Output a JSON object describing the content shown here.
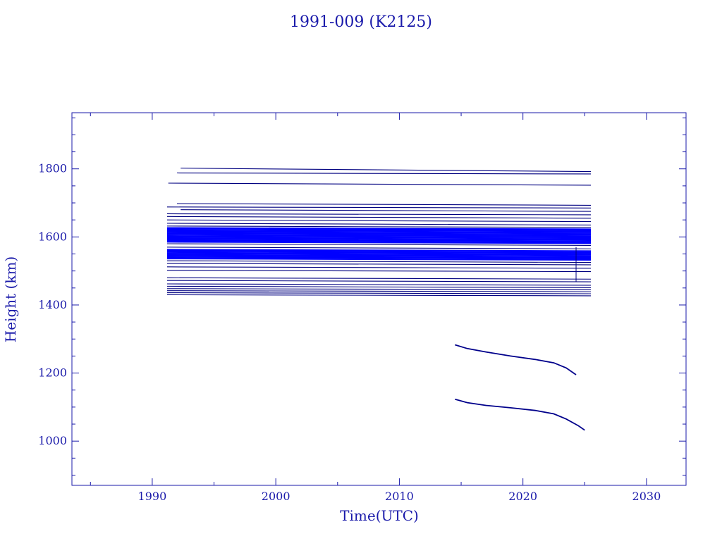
{
  "chart_data": {
    "type": "line",
    "title": "1991-009 (K2125)",
    "xlabel": "Time(UTC)",
    "ylabel": "Height (km)",
    "xlim": [
      1983.5,
      2033.2
    ],
    "ylim": [
      870,
      1965
    ],
    "x_ticks": [
      1990,
      2000,
      2010,
      2020,
      2030
    ],
    "y_ticks": [
      1000,
      1200,
      1400,
      1600,
      1800
    ],
    "grid": false,
    "colors": {
      "frame": "#1a1aaa",
      "text": "#1a1aaa",
      "dense_lines": "#0000ff",
      "thin_lines": "#000080",
      "decay_lines": "#00008b"
    },
    "debris_tracks": {
      "thin_series": [
        {
          "start": 1992.3,
          "end": 2025.5,
          "y0": 1802,
          "y1": 1792
        },
        {
          "start": 1992.0,
          "end": 2025.5,
          "y0": 1788,
          "y1": 1785
        },
        {
          "start": 1991.3,
          "end": 2025.5,
          "y0": 1758,
          "y1": 1752
        },
        {
          "start": 1992.0,
          "end": 2025.5,
          "y0": 1698,
          "y1": 1693
        },
        {
          "start": 1991.2,
          "end": 2025.5,
          "y0": 1688,
          "y1": 1685
        },
        {
          "start": 1992.3,
          "end": 2025.5,
          "y0": 1680,
          "y1": 1675
        },
        {
          "start": 1991.2,
          "end": 2025.5,
          "y0": 1668,
          "y1": 1665
        },
        {
          "start": 1991.2,
          "end": 2025.5,
          "y0": 1660,
          "y1": 1655
        },
        {
          "start": 1991.2,
          "end": 2025.5,
          "y0": 1650,
          "y1": 1645
        },
        {
          "start": 1991.2,
          "end": 2025.5,
          "y0": 1640,
          "y1": 1635
        },
        {
          "start": 1991.2,
          "end": 2025.5,
          "y0": 1632,
          "y1": 1628
        },
        {
          "start": 1991.2,
          "end": 2025.5,
          "y0": 1580,
          "y1": 1575
        },
        {
          "start": 1991.2,
          "end": 2025.5,
          "y0": 1570,
          "y1": 1565
        },
        {
          "start": 1991.2,
          "end": 2025.5,
          "y0": 1530,
          "y1": 1525
        },
        {
          "start": 1991.2,
          "end": 2025.5,
          "y0": 1522,
          "y1": 1518
        },
        {
          "start": 1991.2,
          "end": 2025.5,
          "y0": 1512,
          "y1": 1508
        },
        {
          "start": 1991.2,
          "end": 2025.5,
          "y0": 1502,
          "y1": 1498
        },
        {
          "start": 1991.2,
          "end": 2025.5,
          "y0": 1480,
          "y1": 1476
        },
        {
          "start": 1991.2,
          "end": 2025.5,
          "y0": 1472,
          "y1": 1468
        },
        {
          "start": 1991.2,
          "end": 2025.5,
          "y0": 1462,
          "y1": 1458
        },
        {
          "start": 1991.2,
          "end": 2025.5,
          "y0": 1455,
          "y1": 1451
        },
        {
          "start": 1991.2,
          "end": 2025.5,
          "y0": 1448,
          "y1": 1445
        },
        {
          "start": 1991.2,
          "end": 2025.5,
          "y0": 1442,
          "y1": 1439
        },
        {
          "start": 1991.2,
          "end": 2025.5,
          "y0": 1436,
          "y1": 1433
        },
        {
          "start": 1991.2,
          "end": 2025.5,
          "y0": 1430,
          "y1": 1427
        }
      ],
      "dense_series": [
        {
          "start": 1991.2,
          "end": 2025.5,
          "y0": 1626,
          "y1": 1622
        },
        {
          "start": 1991.2,
          "end": 2025.5,
          "y0": 1621,
          "y1": 1617
        },
        {
          "start": 1991.2,
          "end": 2025.5,
          "y0": 1616,
          "y1": 1612
        },
        {
          "start": 1991.2,
          "end": 2025.5,
          "y0": 1611,
          "y1": 1607
        },
        {
          "start": 1991.2,
          "end": 2025.5,
          "y0": 1606,
          "y1": 1602
        },
        {
          "start": 1991.2,
          "end": 2025.5,
          "y0": 1601,
          "y1": 1597
        },
        {
          "start": 1991.2,
          "end": 2025.5,
          "y0": 1596,
          "y1": 1592
        },
        {
          "start": 1991.2,
          "end": 2025.5,
          "y0": 1591,
          "y1": 1587
        },
        {
          "start": 1991.2,
          "end": 2025.5,
          "y0": 1586,
          "y1": 1582
        },
        {
          "start": 1991.2,
          "end": 2025.5,
          "y0": 1562,
          "y1": 1558
        },
        {
          "start": 1991.2,
          "end": 2025.5,
          "y0": 1557,
          "y1": 1553
        },
        {
          "start": 1991.2,
          "end": 2025.5,
          "y0": 1552,
          "y1": 1548
        },
        {
          "start": 1991.2,
          "end": 2025.5,
          "y0": 1547,
          "y1": 1543
        },
        {
          "start": 1991.2,
          "end": 2025.5,
          "y0": 1542,
          "y1": 1538
        },
        {
          "start": 1991.2,
          "end": 2025.5,
          "y0": 1537,
          "y1": 1533
        }
      ],
      "vertical_drop": {
        "x": 2024.3,
        "y_top": 1570,
        "y_bottom": 1468
      }
    },
    "decay_series": [
      {
        "x": [
          2014.5,
          2015.5,
          2017.0,
          2019.0,
          2021.0,
          2022.5,
          2023.5,
          2024.3
        ],
        "y": [
          1283,
          1272,
          1262,
          1250,
          1240,
          1230,
          1215,
          1195
        ]
      },
      {
        "x": [
          2014.5,
          2015.5,
          2017.0,
          2019.0,
          2021.0,
          2022.5,
          2023.5,
          2024.5,
          2025.0
        ],
        "y": [
          1123,
          1113,
          1105,
          1098,
          1090,
          1080,
          1065,
          1045,
          1032
        ]
      }
    ]
  }
}
